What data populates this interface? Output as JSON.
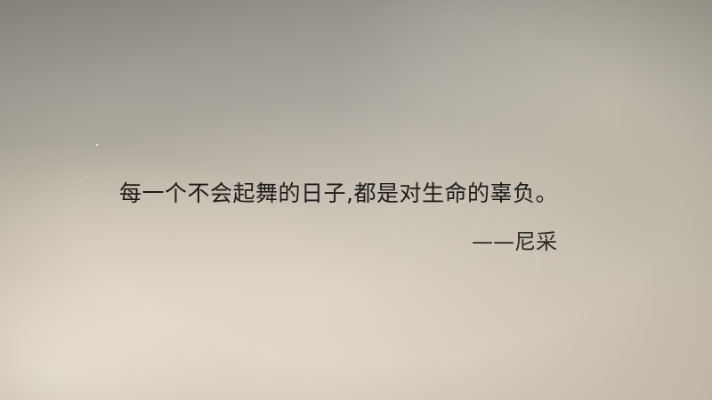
{
  "wall_text": {
    "quote": "每一个不会起舞的日子,都是对生命的辜负。",
    "attribution": "——尼采"
  },
  "colors": {
    "text": "#1d1c1a",
    "wall_top": "#8f8d85",
    "wall_bottom": "#d6cbbb",
    "light_spot": "#faf0e4"
  }
}
